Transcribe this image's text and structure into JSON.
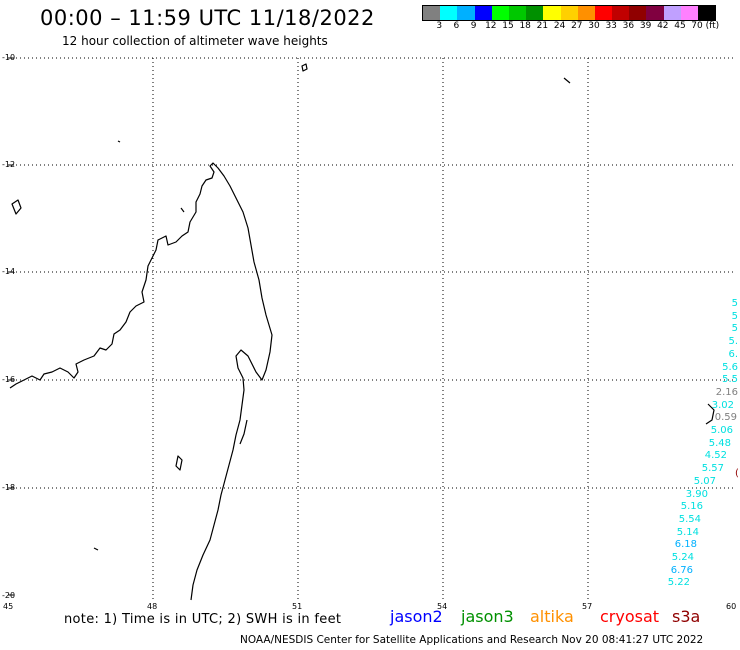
{
  "header": {
    "title": "00:00 – 11:59 UTC 11/18/2022",
    "subtitle": "12 hour collection of altimeter wave heights"
  },
  "colorbar": {
    "colors": [
      "#808080",
      "#00ffff",
      "#00b0ff",
      "#0000ff",
      "#00ff00",
      "#00c800",
      "#009000",
      "#ffff00",
      "#ffd000",
      "#ff9000",
      "#ff0000",
      "#c00000",
      "#900000",
      "#800040",
      "#c0a0ff",
      "#ff80ff",
      "#000000"
    ],
    "labels": [
      "3",
      "6",
      "9",
      "12",
      "15",
      "18",
      "21",
      "24",
      "27",
      "30",
      "33",
      "36",
      "39",
      "42",
      "45",
      "70 (ft)"
    ]
  },
  "axes": {
    "lat_labels": [
      "-10",
      "-12",
      "-14",
      "-16",
      "-18",
      "-20"
    ],
    "lon_labels": [
      "45",
      "48",
      "51",
      "54",
      "57",
      "60"
    ]
  },
  "wave_readings": [
    {
      "value": "5",
      "color": "#00e0e0"
    },
    {
      "value": "5",
      "color": "#00e0e0"
    },
    {
      "value": "5",
      "color": "#00e0e0"
    },
    {
      "value": "5.",
      "color": "#00e0e0"
    },
    {
      "value": "6.",
      "color": "#00e0e0"
    },
    {
      "value": "5.6",
      "color": "#00e0e0"
    },
    {
      "value": "5.5",
      "color": "#00e0e0"
    },
    {
      "value": "2.16",
      "color": "#808080"
    },
    {
      "value": "3.02",
      "color": "#00e0e0"
    },
    {
      "value": "0.59",
      "color": "#808080"
    },
    {
      "value": "5.06",
      "color": "#00e0e0"
    },
    {
      "value": "5.48",
      "color": "#00e0e0"
    },
    {
      "value": "4.52",
      "color": "#00e0e0"
    },
    {
      "value": "5.57",
      "color": "#00e0e0"
    },
    {
      "value": "5.07",
      "color": "#00e0e0"
    },
    {
      "value": "3.90",
      "color": "#00e0e0"
    },
    {
      "value": "5.16",
      "color": "#00e0e0"
    },
    {
      "value": "5.54",
      "color": "#00e0e0"
    },
    {
      "value": "5.14",
      "color": "#00e0e0"
    },
    {
      "value": "6.18",
      "color": "#00b0ff"
    },
    {
      "value": "5.24",
      "color": "#00e0e0"
    },
    {
      "value": "6.76",
      "color": "#00b0ff"
    },
    {
      "value": "5.22",
      "color": "#00e0e0"
    }
  ],
  "footer": {
    "note": "note: 1) Time is in UTC; 2) SWH is in feet",
    "legend": [
      {
        "label": "jason2",
        "color": "#0000ff"
      },
      {
        "label": "jason3",
        "color": "#009000"
      },
      {
        "label": "altika",
        "color": "#ff9000"
      },
      {
        "label": "cryosat",
        "color": "#ff0000"
      },
      {
        "label": "s3a",
        "color": "#900000"
      }
    ],
    "credit": "NOAA/NESDIS Center for Satellite Applications and Research    Nov 20 08:41:27 UTC 2022"
  }
}
